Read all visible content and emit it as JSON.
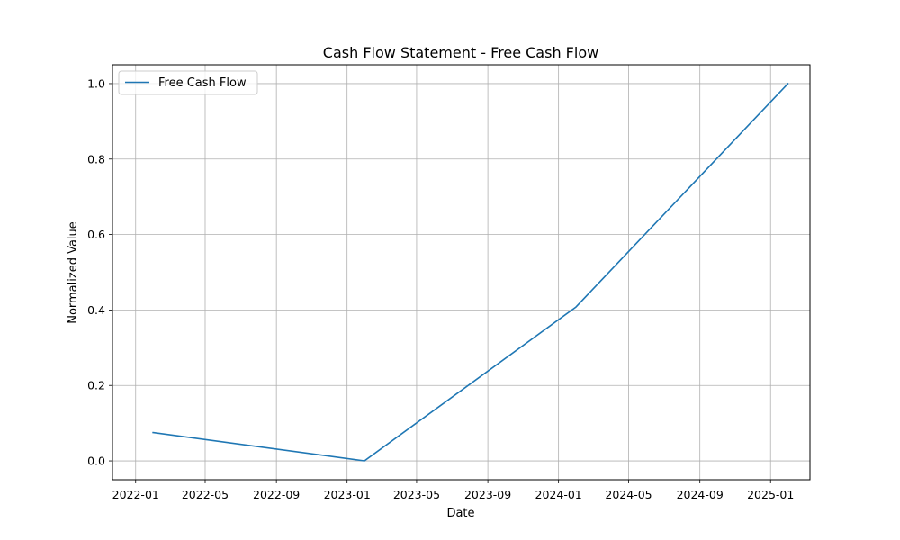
{
  "chart_data": {
    "type": "line",
    "title": "Cash Flow Statement - Free Cash Flow",
    "xlabel": "Date",
    "ylabel": "Normalized Value",
    "x_ticks": [
      "2022-01",
      "2022-05",
      "2022-09",
      "2023-01",
      "2023-05",
      "2023-09",
      "2024-01",
      "2024-05",
      "2024-09",
      "2025-01"
    ],
    "y_ticks": [
      "0.0",
      "0.2",
      "0.4",
      "0.6",
      "0.8",
      "1.0"
    ],
    "xlim": [
      "2021-11-22",
      "2025-03-10"
    ],
    "ylim": [
      -0.05,
      1.05
    ],
    "grid": true,
    "legend_position": "top-left",
    "series": [
      {
        "name": "Free Cash Flow",
        "color": "#1f77b4",
        "points": [
          {
            "x": "2022-01-31",
            "y": 0.075
          },
          {
            "x": "2023-01-31",
            "y": 0.0
          },
          {
            "x": "2024-01-31",
            "y": 0.408
          },
          {
            "x": "2025-01-31",
            "y": 1.0
          }
        ]
      }
    ]
  }
}
